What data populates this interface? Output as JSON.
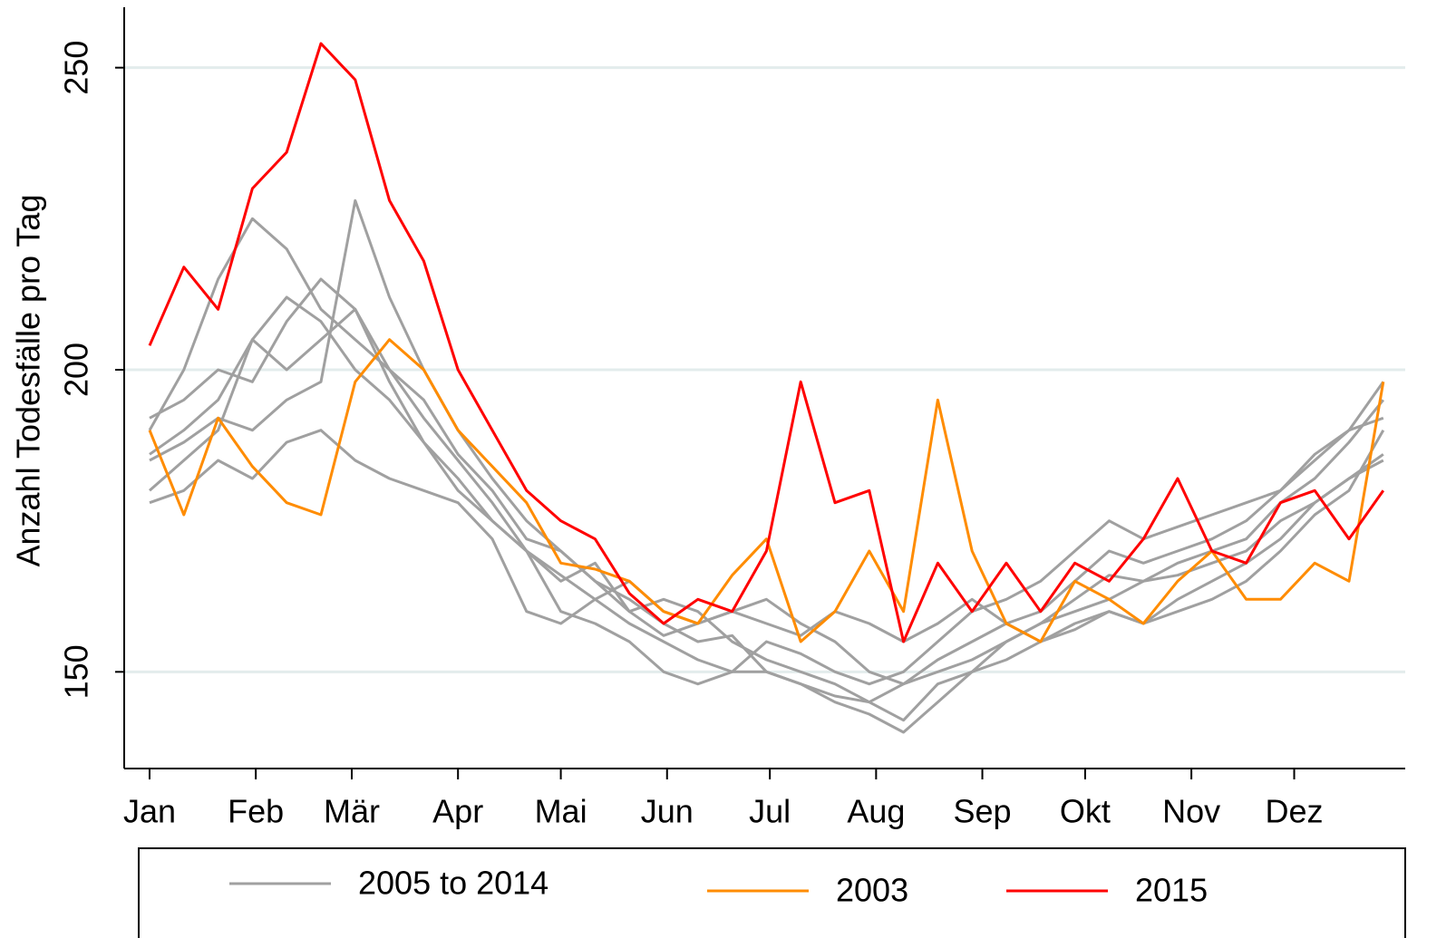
{
  "chart_data": {
    "type": "line",
    "y_label": "Anzahl Todesfälle pro Tag",
    "x": [
      1,
      11,
      21,
      31,
      41,
      51,
      61,
      71,
      81,
      91,
      101,
      111,
      121,
      131,
      141,
      151,
      161,
      171,
      181,
      191,
      201,
      211,
      221,
      231,
      241,
      251,
      261,
      271,
      281,
      291,
      301,
      311,
      321,
      331,
      341,
      351,
      361
    ],
    "xlim": [
      -6.4,
      367.4
    ],
    "xticks": [
      {
        "value": 1,
        "label": "Jan"
      },
      {
        "value": 32,
        "label": "Feb"
      },
      {
        "value": 60,
        "label": "Mär"
      },
      {
        "value": 91,
        "label": "Apr"
      },
      {
        "value": 121,
        "label": "Mai"
      },
      {
        "value": 152,
        "label": "Jun"
      },
      {
        "value": 182,
        "label": "Jul"
      },
      {
        "value": 213,
        "label": "Aug"
      },
      {
        "value": 244,
        "label": "Sep"
      },
      {
        "value": 274,
        "label": "Okt"
      },
      {
        "value": 305,
        "label": "Nov"
      },
      {
        "value": 335,
        "label": "Dez"
      }
    ],
    "ylim": [
      134,
      260
    ],
    "yticks": [
      150,
      200,
      250
    ],
    "grid": true,
    "legend": "bottom",
    "series": [
      {
        "name": "2005 to 2014",
        "color": "#a0a0a0",
        "values": [
          [
            190,
            200,
            215,
            225,
            220,
            210,
            205,
            200,
            195,
            186,
            180,
            172,
            170,
            165,
            162,
            158,
            155,
            156,
            150,
            148,
            146,
            145,
            148,
            150,
            152,
            155,
            158,
            162,
            166,
            165,
            168,
            170,
            172,
            178,
            182,
            188,
            195
          ],
          [
            180,
            185,
            190,
            205,
            212,
            208,
            200,
            195,
            188,
            182,
            175,
            170,
            165,
            168,
            160,
            156,
            158,
            160,
            162,
            158,
            155,
            150,
            148,
            152,
            155,
            158,
            160,
            165,
            170,
            168,
            170,
            172,
            175,
            180,
            185,
            190,
            192
          ],
          [
            185,
            188,
            192,
            190,
            195,
            198,
            228,
            212,
            200,
            190,
            182,
            175,
            170,
            165,
            160,
            162,
            160,
            155,
            152,
            150,
            148,
            145,
            142,
            148,
            150,
            155,
            158,
            160,
            162,
            165,
            166,
            168,
            170,
            175,
            178,
            182,
            186
          ],
          [
            192,
            195,
            200,
            198,
            208,
            215,
            210,
            200,
            192,
            185,
            178,
            170,
            160,
            158,
            155,
            150,
            148,
            150,
            155,
            153,
            150,
            148,
            150,
            155,
            160,
            162,
            165,
            170,
            175,
            172,
            174,
            176,
            178,
            180,
            186,
            190,
            198
          ],
          [
            178,
            180,
            185,
            182,
            188,
            190,
            185,
            182,
            180,
            178,
            172,
            160,
            158,
            162,
            165,
            160,
            158,
            160,
            158,
            156,
            160,
            158,
            155,
            158,
            162,
            158,
            155,
            158,
            160,
            158,
            162,
            165,
            168,
            172,
            178,
            182,
            185
          ],
          [
            186,
            190,
            195,
            205,
            200,
            205,
            210,
            198,
            188,
            180,
            175,
            170,
            166,
            162,
            158,
            155,
            152,
            150,
            150,
            148,
            145,
            143,
            140,
            145,
            150,
            152,
            155,
            157,
            160,
            158,
            160,
            162,
            165,
            170,
            176,
            180,
            190
          ]
        ]
      },
      {
        "name": "2003",
        "color": "#ff8c00",
        "values": [
          190,
          176,
          192,
          184,
          178,
          176,
          198,
          205,
          200,
          190,
          184,
          178,
          168,
          167,
          165,
          160,
          158,
          166,
          172,
          155,
          160,
          170,
          160,
          195,
          170,
          158,
          155,
          165,
          162,
          158,
          165,
          170,
          162,
          162,
          168,
          165,
          198
        ]
      },
      {
        "name": "2015",
        "color": "#ff0000",
        "values": [
          204,
          217,
          210,
          230,
          236,
          254,
          248,
          228,
          218,
          200,
          190,
          180,
          175,
          172,
          163,
          158,
          162,
          160,
          170,
          198,
          178,
          180,
          155,
          168,
          160,
          168,
          160,
          168,
          165,
          172,
          182,
          170,
          168,
          178,
          180,
          172,
          180
        ]
      }
    ]
  }
}
